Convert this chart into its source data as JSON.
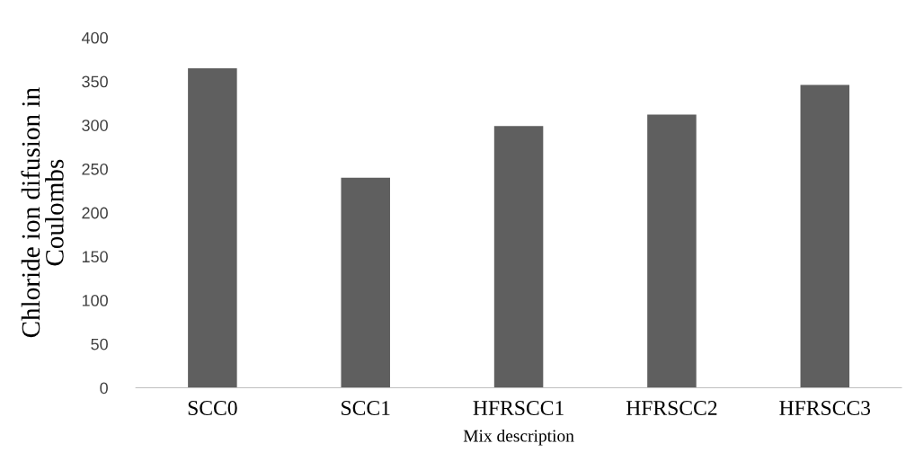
{
  "chart_data": {
    "type": "bar",
    "xlabel": "Mix description",
    "ylabel": "Chloride ion difusion in\nCoulombs",
    "categories": [
      "SCC0",
      "SCC1",
      "HFRSCC1",
      "HFRSCC2",
      "HFRSCC3"
    ],
    "values": [
      365,
      240,
      299,
      312,
      346
    ],
    "color": "#5f5f5f",
    "ylim": [
      0,
      400
    ],
    "yticks": [
      0,
      50,
      100,
      150,
      200,
      250,
      300,
      350,
      400
    ],
    "grid": false,
    "legend": false
  }
}
